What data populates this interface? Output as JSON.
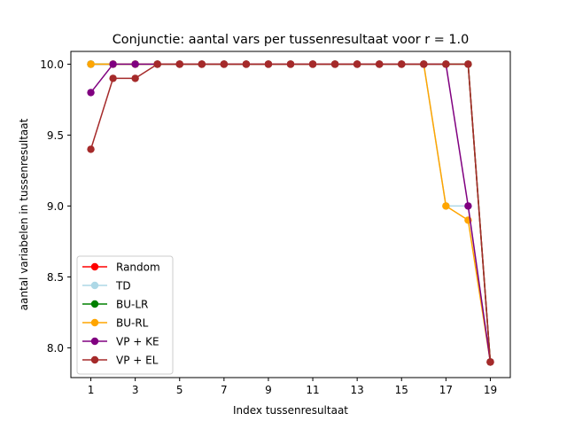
{
  "chart_data": {
    "type": "line",
    "title": "Conjunctie: aantal vars per tussenresultaat voor r = 1.0",
    "xlabel": "Index tussenresultaat",
    "ylabel": "aantal variabelen in tussenresultaat",
    "x": [
      1,
      2,
      3,
      4,
      5,
      6,
      7,
      8,
      9,
      10,
      11,
      12,
      13,
      14,
      15,
      16,
      17,
      18,
      19
    ],
    "xticks": [
      "1",
      "3",
      "5",
      "7",
      "9",
      "11",
      "13",
      "15",
      "17",
      "19"
    ],
    "xtick_values": [
      1,
      3,
      5,
      7,
      9,
      11,
      13,
      15,
      17,
      19
    ],
    "yticks": [
      "8.0",
      "8.5",
      "9.0",
      "9.5",
      "10.0"
    ],
    "ytick_values": [
      8.0,
      8.5,
      9.0,
      9.5,
      10.0
    ],
    "xlim": [
      0.1,
      19.9
    ],
    "ylim": [
      7.79,
      10.09
    ],
    "grid": false,
    "legend_position": "lower-left",
    "series": [
      {
        "name": "Random",
        "color": "#ff0000",
        "values": [
          10,
          10,
          10,
          10,
          10,
          10,
          10,
          10,
          10,
          10,
          10,
          10,
          10,
          10,
          10,
          10,
          10,
          10,
          7.9
        ]
      },
      {
        "name": "TD",
        "color": "#add8e6",
        "values": [
          10,
          10,
          10,
          10,
          10,
          10,
          10,
          10,
          10,
          10,
          10,
          10,
          10,
          10,
          10,
          10,
          9.0,
          9.0,
          7.9
        ]
      },
      {
        "name": "BU-LR",
        "color": "#008000",
        "values": [
          10,
          10,
          10,
          10,
          10,
          10,
          10,
          10,
          10,
          10,
          10,
          10,
          10,
          10,
          10,
          10,
          10,
          10,
          7.9
        ]
      },
      {
        "name": "BU-RL",
        "color": "#ffa500",
        "values": [
          10,
          10,
          10,
          10,
          10,
          10,
          10,
          10,
          10,
          10,
          10,
          10,
          10,
          10,
          10,
          10,
          9.0,
          8.9,
          7.9
        ]
      },
      {
        "name": "VP + KE",
        "color": "#800080",
        "values": [
          9.8,
          10,
          10,
          10,
          10,
          10,
          10,
          10,
          10,
          10,
          10,
          10,
          10,
          10,
          10,
          10,
          10,
          9.0,
          7.9
        ]
      },
      {
        "name": "VP + EL",
        "color": "#a52a2a",
        "values": [
          9.4,
          9.9,
          9.9,
          10,
          10,
          10,
          10,
          10,
          10,
          10,
          10,
          10,
          10,
          10,
          10,
          10,
          10,
          10,
          7.9
        ]
      }
    ]
  }
}
